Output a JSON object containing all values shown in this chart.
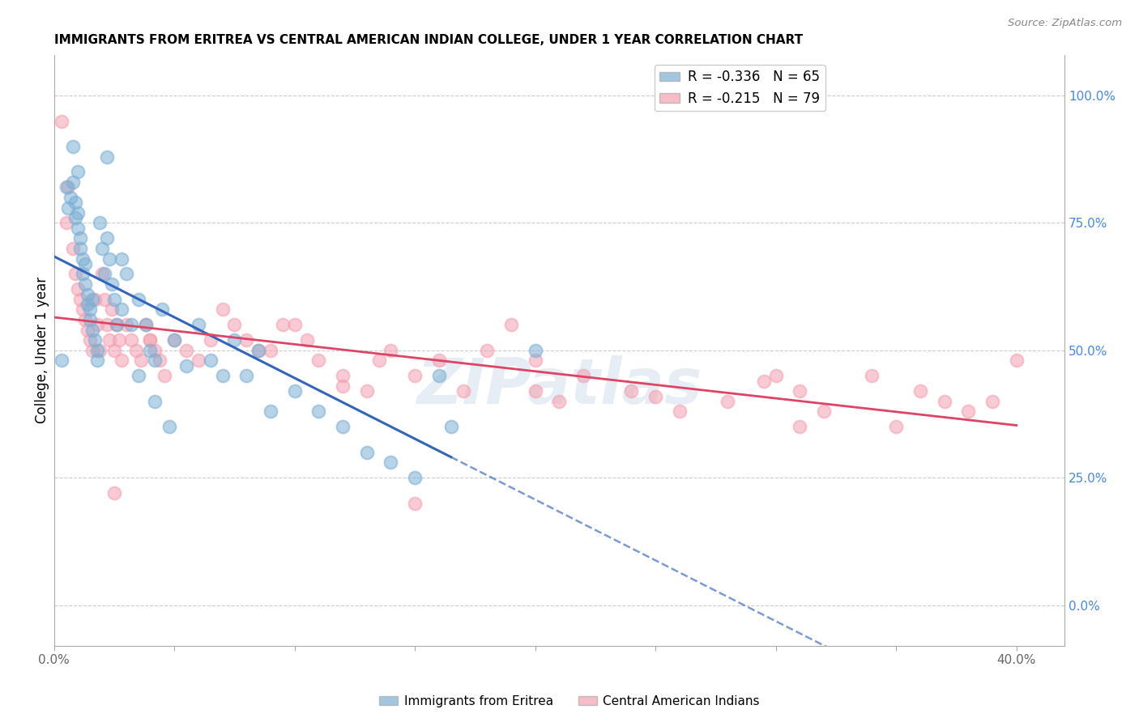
{
  "title": "IMMIGRANTS FROM ERITREA VS CENTRAL AMERICAN INDIAN COLLEGE, UNDER 1 YEAR CORRELATION CHART",
  "source": "Source: ZipAtlas.com",
  "ylabel": "College, Under 1 year",
  "right_yticks": [
    0.0,
    0.25,
    0.5,
    0.75,
    1.0
  ],
  "right_yticklabels": [
    "0.0%",
    "25.0%",
    "50.0%",
    "75.0%",
    "100.0%"
  ],
  "xticks": [
    0.0,
    0.05,
    0.1,
    0.15,
    0.2,
    0.25,
    0.3,
    0.35,
    0.4
  ],
  "xlim": [
    0.0,
    0.42
  ],
  "ylim": [
    -0.08,
    1.08
  ],
  "legend_r_blue": "-0.336",
  "legend_n_blue": "65",
  "legend_r_pink": "-0.215",
  "legend_n_pink": "79",
  "blue_color": "#7bafd4",
  "pink_color": "#f4a0b0",
  "blue_line_color": "#3366bb",
  "pink_line_color": "#dd4466",
  "watermark": "ZIPatlas",
  "blue_scatter_x": [
    0.003,
    0.005,
    0.006,
    0.007,
    0.008,
    0.009,
    0.009,
    0.01,
    0.01,
    0.011,
    0.011,
    0.012,
    0.012,
    0.013,
    0.013,
    0.014,
    0.014,
    0.015,
    0.015,
    0.016,
    0.016,
    0.017,
    0.018,
    0.018,
    0.019,
    0.02,
    0.021,
    0.022,
    0.023,
    0.024,
    0.025,
    0.026,
    0.028,
    0.03,
    0.032,
    0.035,
    0.038,
    0.04,
    0.042,
    0.045,
    0.05,
    0.055,
    0.06,
    0.065,
    0.07,
    0.075,
    0.08,
    0.09,
    0.1,
    0.11,
    0.12,
    0.13,
    0.14,
    0.15,
    0.022,
    0.028,
    0.035,
    0.042,
    0.048,
    0.085,
    0.16,
    0.2,
    0.165,
    0.008,
    0.01
  ],
  "blue_scatter_y": [
    0.48,
    0.82,
    0.78,
    0.8,
    0.83,
    0.79,
    0.76,
    0.77,
    0.74,
    0.72,
    0.7,
    0.68,
    0.65,
    0.67,
    0.63,
    0.61,
    0.59,
    0.58,
    0.56,
    0.6,
    0.54,
    0.52,
    0.5,
    0.48,
    0.75,
    0.7,
    0.65,
    0.72,
    0.68,
    0.63,
    0.6,
    0.55,
    0.58,
    0.65,
    0.55,
    0.6,
    0.55,
    0.5,
    0.48,
    0.58,
    0.52,
    0.47,
    0.55,
    0.48,
    0.45,
    0.52,
    0.45,
    0.38,
    0.42,
    0.38,
    0.35,
    0.3,
    0.28,
    0.25,
    0.88,
    0.68,
    0.45,
    0.4,
    0.35,
    0.5,
    0.45,
    0.5,
    0.35,
    0.9,
    0.85
  ],
  "pink_scatter_x": [
    0.003,
    0.005,
    0.006,
    0.008,
    0.009,
    0.01,
    0.011,
    0.012,
    0.013,
    0.014,
    0.015,
    0.016,
    0.017,
    0.018,
    0.019,
    0.02,
    0.021,
    0.022,
    0.023,
    0.024,
    0.025,
    0.026,
    0.027,
    0.028,
    0.03,
    0.032,
    0.034,
    0.036,
    0.038,
    0.04,
    0.042,
    0.044,
    0.046,
    0.05,
    0.055,
    0.06,
    0.065,
    0.07,
    0.075,
    0.08,
    0.09,
    0.1,
    0.11,
    0.12,
    0.13,
    0.14,
    0.15,
    0.16,
    0.17,
    0.18,
    0.2,
    0.21,
    0.22,
    0.24,
    0.26,
    0.28,
    0.3,
    0.31,
    0.32,
    0.34,
    0.36,
    0.38,
    0.39,
    0.095,
    0.105,
    0.085,
    0.135,
    0.295,
    0.37,
    0.31,
    0.35,
    0.4,
    0.19,
    0.2,
    0.025,
    0.15,
    0.04,
    0.12,
    0.25
  ],
  "pink_scatter_y": [
    0.95,
    0.75,
    0.82,
    0.7,
    0.65,
    0.62,
    0.6,
    0.58,
    0.56,
    0.54,
    0.52,
    0.5,
    0.6,
    0.55,
    0.5,
    0.65,
    0.6,
    0.55,
    0.52,
    0.58,
    0.5,
    0.55,
    0.52,
    0.48,
    0.55,
    0.52,
    0.5,
    0.48,
    0.55,
    0.52,
    0.5,
    0.48,
    0.45,
    0.52,
    0.5,
    0.48,
    0.52,
    0.58,
    0.55,
    0.52,
    0.5,
    0.55,
    0.48,
    0.45,
    0.42,
    0.5,
    0.45,
    0.48,
    0.42,
    0.5,
    0.42,
    0.4,
    0.45,
    0.42,
    0.38,
    0.4,
    0.45,
    0.42,
    0.38,
    0.45,
    0.42,
    0.38,
    0.4,
    0.55,
    0.52,
    0.5,
    0.48,
    0.44,
    0.4,
    0.35,
    0.35,
    0.48,
    0.55,
    0.48,
    0.22,
    0.2,
    0.52,
    0.43,
    0.41
  ]
}
